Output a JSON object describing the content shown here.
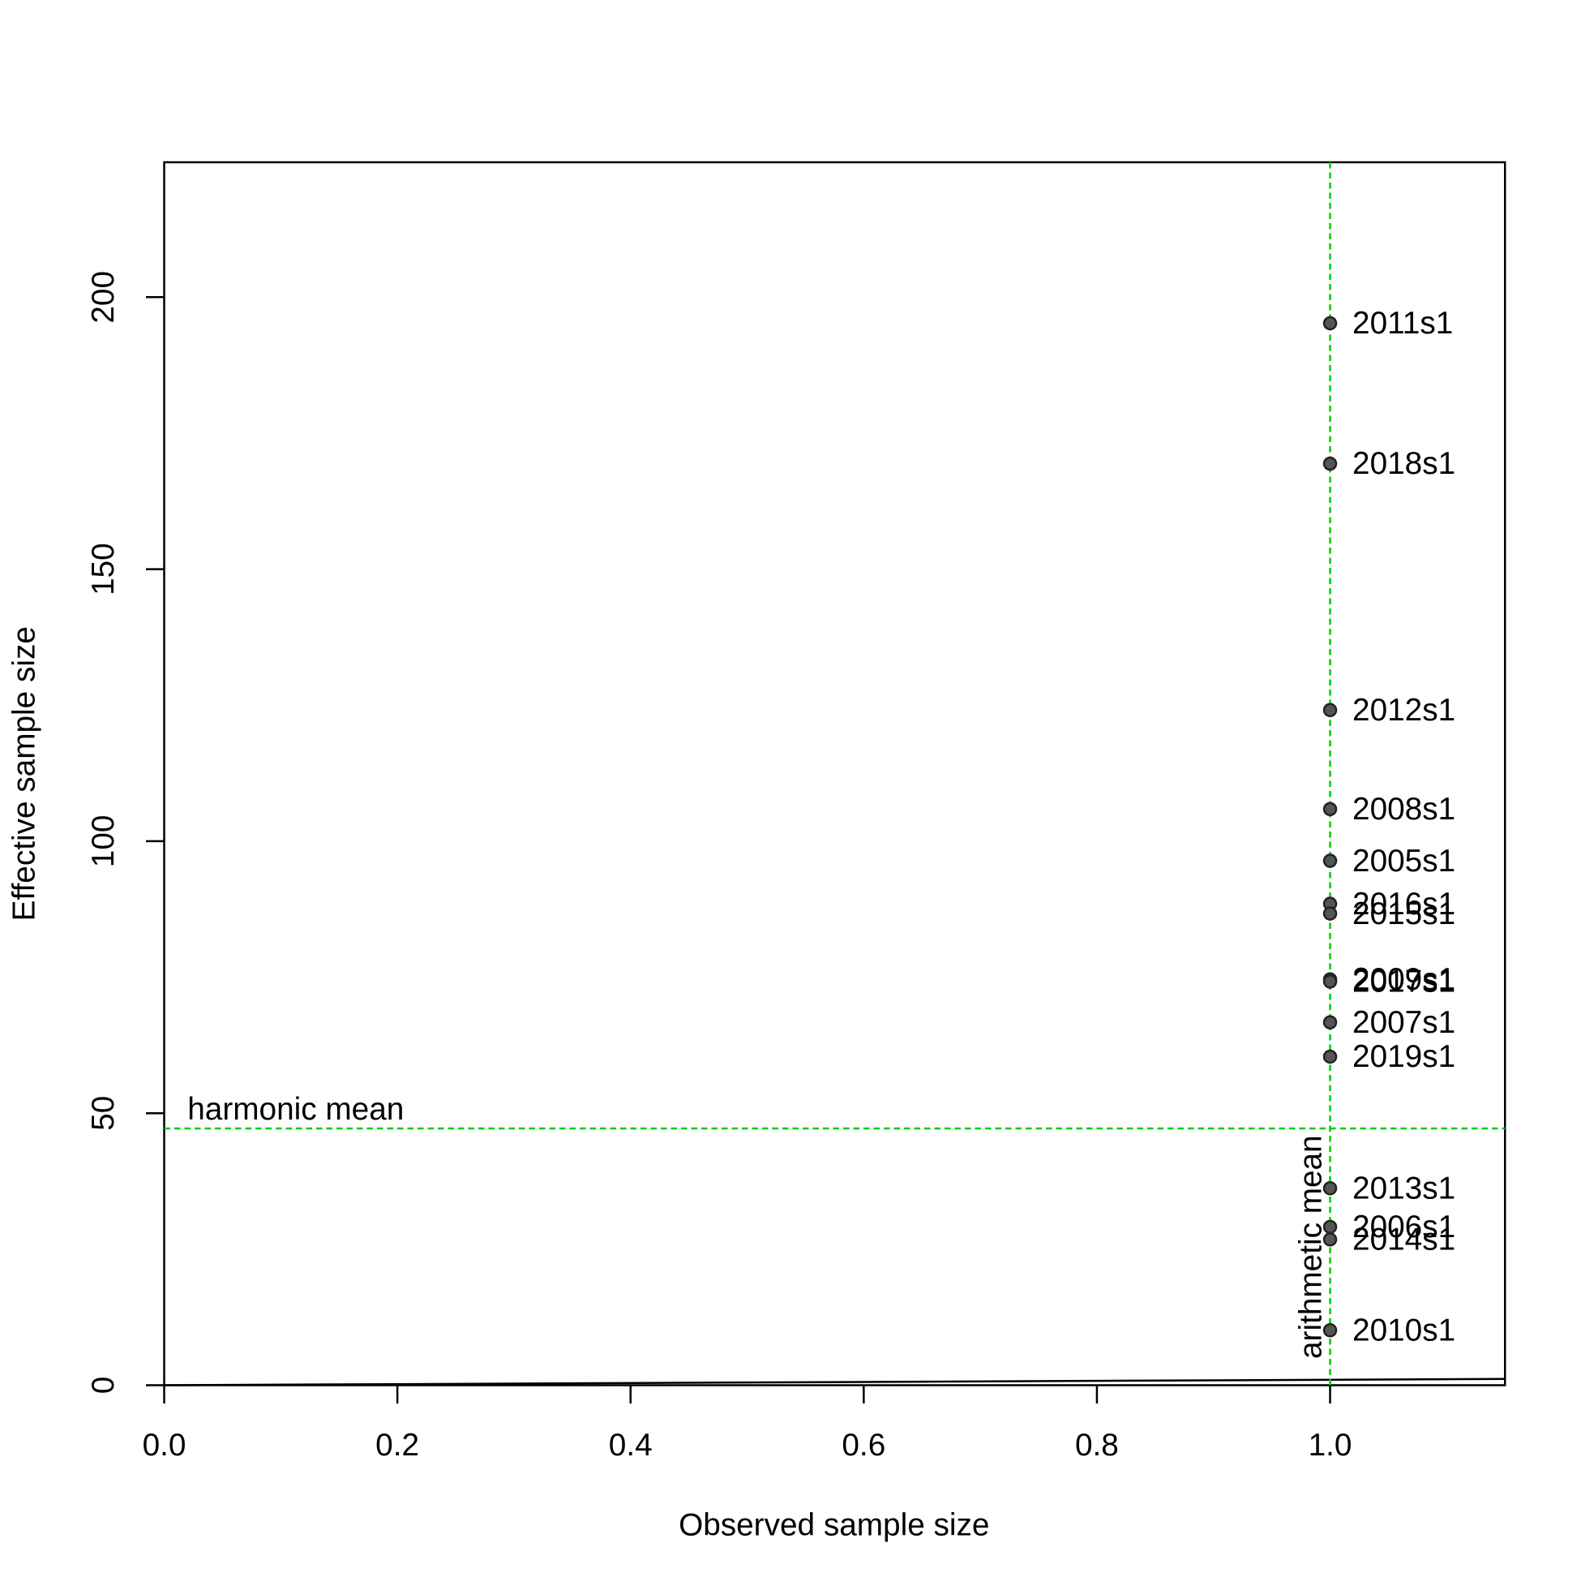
{
  "chart_data": {
    "type": "scatter",
    "x_label": "Observed sample size",
    "y_label": "Effective sample size",
    "x": [
      1,
      1,
      1,
      1,
      1,
      1,
      1,
      1,
      1,
      1,
      1,
      1,
      1,
      1,
      1
    ],
    "values": [
      195.2,
      169.4,
      124.1,
      105.9,
      96.4,
      88.5,
      86.7,
      74.6,
      74.2,
      66.7,
      60.4,
      36.2,
      29.1,
      26.8,
      10.1
    ],
    "point_labels": [
      "2011s1",
      "2018s1",
      "2012s1",
      "2008s1",
      "2005s1",
      "2016s1",
      "2015s1",
      "2009s1",
      "2017s1",
      "2007s1",
      "2019s1",
      "2013s1",
      "2006s1",
      "2014s1",
      "2010s1"
    ],
    "color": "#555555",
    "xlim": [
      0,
      1.15
    ],
    "ylim": [
      0,
      224.8
    ],
    "xticks": [
      {
        "value": 0,
        "label": "0.0"
      },
      {
        "value": 0.2,
        "label": "0.2"
      },
      {
        "value": 0.4,
        "label": "0.4"
      },
      {
        "value": 0.6,
        "label": "0.6"
      },
      {
        "value": 0.8,
        "label": "0.8"
      },
      {
        "value": 1,
        "label": "1.0"
      }
    ],
    "yticks": [
      0,
      50,
      100,
      150,
      200
    ],
    "mean_color": "#00cd00",
    "harmonic_mean": {
      "label": "harmonic mean",
      "value": 47.2
    },
    "arithmetic_mean": {
      "label": "arithmetic mean",
      "value": 1
    }
  }
}
